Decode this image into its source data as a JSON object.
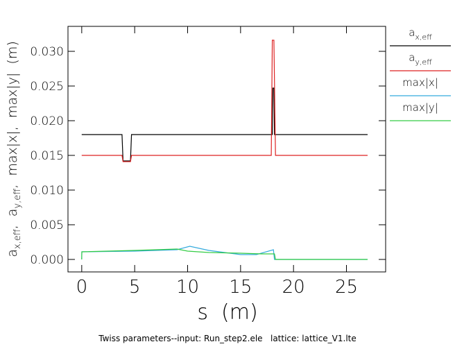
{
  "chart_data": {
    "type": "line",
    "xlabel": "s  (m)",
    "ylabel_parts": [
      "a",
      "x,eff",
      ",  a",
      "y,eff",
      ",  max|x|,  max|y|  (m)"
    ],
    "footer": "Twiss parameters--input: Run_step2.ele   lattice: lattice_V1.lte",
    "xlim": [
      -1.3,
      28.7
    ],
    "ylim": [
      -0.0018,
      0.0336
    ],
    "x_ticks": [
      0,
      5,
      10,
      15,
      20,
      25
    ],
    "x_tick_labels": [
      "0",
      "5",
      "10",
      "15",
      "20",
      "25"
    ],
    "y_ticks": [
      0.0,
      0.005,
      0.01,
      0.015,
      0.02,
      0.025,
      0.03
    ],
    "y_tick_labels": [
      "0.000",
      "0.005",
      "0.010",
      "0.015",
      "0.020",
      "0.025",
      "0.030"
    ],
    "grid": false,
    "legend_position": "right",
    "series": [
      {
        "name_main": "a",
        "name_sub": "x,eff",
        "color": "#000000",
        "x": [
          0,
          3.8,
          3.9,
          4.6,
          4.7,
          18.0,
          18.05,
          18.15,
          18.2,
          27.0
        ],
        "y": [
          0.018,
          0.018,
          0.0142,
          0.0142,
          0.018,
          0.018,
          0.0247,
          0.0247,
          0.018,
          0.018
        ]
      },
      {
        "name_main": "a",
        "name_sub": "y,eff",
        "color": "#dd2222",
        "x": [
          0,
          3.8,
          3.9,
          4.6,
          4.7,
          17.9,
          18.0,
          18.15,
          18.3,
          27.0
        ],
        "y": [
          0.015,
          0.015,
          0.0141,
          0.0141,
          0.015,
          0.015,
          0.0316,
          0.0316,
          0.015,
          0.015
        ]
      },
      {
        "name_main": "max|x|",
        "name_sub": "",
        "color": "#33aadd",
        "x": [
          0,
          0.01,
          5,
          9,
          10.2,
          12,
          15,
          16.5,
          18.1,
          18.2,
          27.0
        ],
        "y": [
          0,
          0.0011,
          0.0012,
          0.0014,
          0.0019,
          0.0013,
          0.0007,
          0.0007,
          0.0014,
          0,
          0
        ]
      },
      {
        "name_main": "max|y|",
        "name_sub": "",
        "color": "#33cc44",
        "x": [
          0,
          0.01,
          5,
          9,
          10,
          12,
          15,
          17,
          18.2,
          18.3,
          27.0
        ],
        "y": [
          0,
          0.0011,
          0.0013,
          0.0015,
          0.0012,
          0.001,
          0.0009,
          0.0008,
          0.0008,
          0,
          0
        ]
      }
    ]
  }
}
